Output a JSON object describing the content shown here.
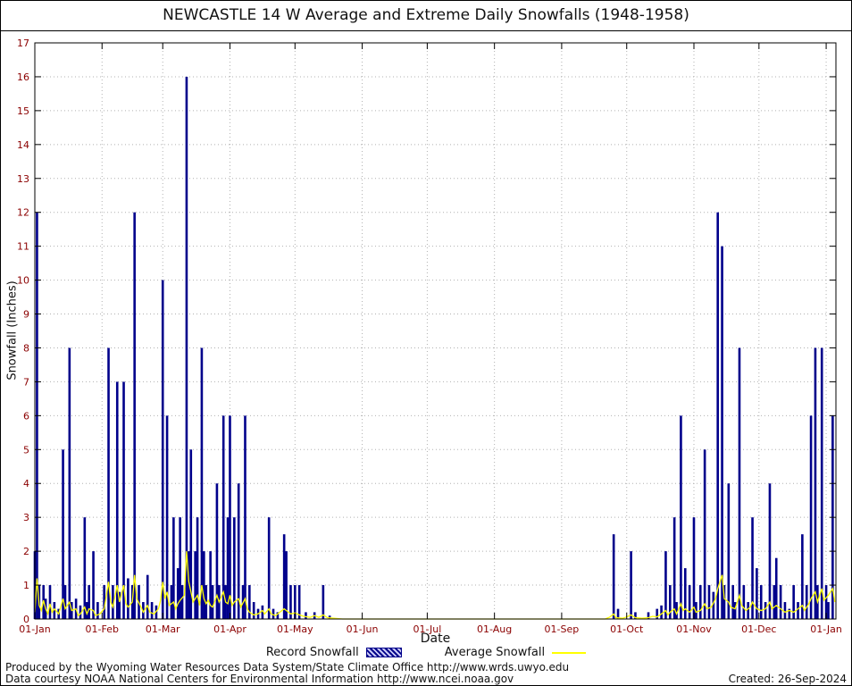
{
  "legend": {
    "record_label": "Record Snowfall",
    "average_label": "Average Snowfall"
  },
  "footer": {
    "line1": "Produced by the Wyoming Water Resources Data System/State Climate Office http://www.wrds.uwyo.edu",
    "line2": "Data courtesy NOAA National Centers for Environmental Information http://www.ncei.noaa.gov",
    "created": "Created: 26-Sep-2024"
  },
  "chart_data": {
    "type": "bar",
    "title": "NEWCASTLE 14 W Average and Extreme Daily Snowfalls (1948-1958)",
    "xlabel": "Date",
    "ylabel": "Snowfall (Inches)",
    "ylim": [
      0,
      17
    ],
    "x_domain_days": [
      1,
      370.5
    ],
    "grid": "dotted",
    "legend_position": "bottom",
    "colors": {
      "record": "#00008b",
      "average": "#ffff00",
      "grid": "#b0b0b0",
      "tick_label": "#8b0000",
      "axis": "#000000"
    },
    "y_ticks": [
      0,
      1,
      2,
      3,
      4,
      5,
      6,
      7,
      8,
      9,
      10,
      11,
      12,
      13,
      14,
      15,
      16,
      17
    ],
    "x_ticks": [
      {
        "day": 1,
        "label": "01-Jan"
      },
      {
        "day": 32,
        "label": "01-Feb"
      },
      {
        "day": 60,
        "label": "01-Mar"
      },
      {
        "day": 91,
        "label": "01-Apr"
      },
      {
        "day": 121,
        "label": "01-May"
      },
      {
        "day": 152,
        "label": "01-Jun"
      },
      {
        "day": 182,
        "label": "01-Jul"
      },
      {
        "day": 213,
        "label": "01-Aug"
      },
      {
        "day": 244,
        "label": "01-Sep"
      },
      {
        "day": 274,
        "label": "01-Oct"
      },
      {
        "day": 305,
        "label": "01-Nov"
      },
      {
        "day": 335,
        "label": "01-Dec"
      },
      {
        "day": 366,
        "label": "01-Jan"
      }
    ],
    "series": [
      {
        "name": "Record Snowfall",
        "type": "bar",
        "color": "#00008b",
        "points": [
          [
            1,
            2
          ],
          [
            2,
            12
          ],
          [
            3,
            1
          ],
          [
            5,
            1
          ],
          [
            6,
            0.6
          ],
          [
            8,
            1
          ],
          [
            10,
            0.5
          ],
          [
            12,
            0.3
          ],
          [
            14,
            5
          ],
          [
            15,
            1
          ],
          [
            17,
            8
          ],
          [
            18,
            0.5
          ],
          [
            20,
            0.6
          ],
          [
            22,
            0.4
          ],
          [
            24,
            3
          ],
          [
            25,
            0.5
          ],
          [
            26,
            1
          ],
          [
            28,
            2
          ],
          [
            30,
            0.5
          ],
          [
            33,
            1
          ],
          [
            35,
            8
          ],
          [
            37,
            1
          ],
          [
            39,
            7
          ],
          [
            40,
            0.8
          ],
          [
            42,
            7
          ],
          [
            44,
            1.2
          ],
          [
            46,
            1
          ],
          [
            47,
            12
          ],
          [
            49,
            1
          ],
          [
            51,
            0.5
          ],
          [
            53,
            1.3
          ],
          [
            55,
            0.5
          ],
          [
            57,
            0.4
          ],
          [
            60,
            10
          ],
          [
            62,
            6
          ],
          [
            64,
            1
          ],
          [
            65,
            3
          ],
          [
            67,
            1.5
          ],
          [
            68,
            3
          ],
          [
            69,
            1
          ],
          [
            71,
            16
          ],
          [
            72,
            2
          ],
          [
            73,
            5
          ],
          [
            75,
            2
          ],
          [
            76,
            3
          ],
          [
            78,
            8
          ],
          [
            79,
            2
          ],
          [
            80,
            1
          ],
          [
            82,
            2
          ],
          [
            83,
            1
          ],
          [
            85,
            4
          ],
          [
            86,
            1
          ],
          [
            88,
            6
          ],
          [
            89,
            1
          ],
          [
            90,
            3
          ],
          [
            91,
            6
          ],
          [
            93,
            3
          ],
          [
            95,
            4
          ],
          [
            97,
            1
          ],
          [
            98,
            6
          ],
          [
            100,
            1
          ],
          [
            102,
            0.5
          ],
          [
            104,
            0.3
          ],
          [
            106,
            0.4
          ],
          [
            109,
            3
          ],
          [
            111,
            0.3
          ],
          [
            113,
            0.2
          ],
          [
            116,
            2.5
          ],
          [
            117,
            2
          ],
          [
            119,
            1
          ],
          [
            121,
            1
          ],
          [
            123,
            1
          ],
          [
            126,
            0.2
          ],
          [
            130,
            0.2
          ],
          [
            134,
            1
          ],
          [
            137,
            0.1
          ],
          [
            268,
            2.5
          ],
          [
            270,
            0.3
          ],
          [
            276,
            2
          ],
          [
            278,
            0.2
          ],
          [
            284,
            0.2
          ],
          [
            288,
            0.3
          ],
          [
            290,
            0.4
          ],
          [
            292,
            2
          ],
          [
            294,
            1
          ],
          [
            296,
            3
          ],
          [
            297,
            0.5
          ],
          [
            299,
            6
          ],
          [
            301,
            1.5
          ],
          [
            303,
            1
          ],
          [
            305,
            3
          ],
          [
            306,
            0.5
          ],
          [
            308,
            1
          ],
          [
            310,
            5
          ],
          [
            312,
            1
          ],
          [
            314,
            0.8
          ],
          [
            316,
            12
          ],
          [
            318,
            11
          ],
          [
            319,
            1
          ],
          [
            321,
            4
          ],
          [
            323,
            1
          ],
          [
            324,
            0.5
          ],
          [
            326,
            8
          ],
          [
            328,
            1
          ],
          [
            330,
            0.5
          ],
          [
            332,
            3
          ],
          [
            334,
            1.5
          ],
          [
            336,
            1
          ],
          [
            338,
            0.5
          ],
          [
            340,
            4
          ],
          [
            342,
            1
          ],
          [
            343,
            1.8
          ],
          [
            345,
            1
          ],
          [
            347,
            0.5
          ],
          [
            349,
            0.3
          ],
          [
            351,
            1
          ],
          [
            353,
            0.5
          ],
          [
            355,
            2.5
          ],
          [
            357,
            1
          ],
          [
            359,
            6
          ],
          [
            361,
            8
          ],
          [
            362,
            1
          ],
          [
            364,
            8
          ],
          [
            366,
            1
          ],
          [
            367,
            0.5
          ],
          [
            369,
            6
          ]
        ]
      },
      {
        "name": "Average Snowfall",
        "type": "line",
        "color": "#ffff00",
        "points": [
          [
            1,
            0.2
          ],
          [
            2,
            1.2
          ],
          [
            3,
            0.4
          ],
          [
            4,
            0.25
          ],
          [
            5,
            0.55
          ],
          [
            6,
            0.3
          ],
          [
            7,
            0.15
          ],
          [
            8,
            0.45
          ],
          [
            9,
            0.2
          ],
          [
            10,
            0.3
          ],
          [
            12,
            0.15
          ],
          [
            14,
            0.6
          ],
          [
            15,
            0.3
          ],
          [
            17,
            0.5
          ],
          [
            18,
            0.25
          ],
          [
            20,
            0.3
          ],
          [
            21,
            0.1
          ],
          [
            22,
            0.15
          ],
          [
            24,
            0.35
          ],
          [
            25,
            0.15
          ],
          [
            26,
            0.3
          ],
          [
            28,
            0.25
          ],
          [
            29,
            0.1
          ],
          [
            31,
            0.15
          ],
          [
            33,
            0.3
          ],
          [
            35,
            1.1
          ],
          [
            36,
            0.5
          ],
          [
            37,
            0.35
          ],
          [
            39,
            1.0
          ],
          [
            40,
            0.5
          ],
          [
            42,
            1.0
          ],
          [
            43,
            0.45
          ],
          [
            44,
            0.35
          ],
          [
            46,
            0.5
          ],
          [
            47,
            1.3
          ],
          [
            48,
            0.6
          ],
          [
            50,
            0.35
          ],
          [
            51,
            0.2
          ],
          [
            53,
            0.4
          ],
          [
            54,
            0.2
          ],
          [
            56,
            0.15
          ],
          [
            58,
            0.3
          ],
          [
            59,
            0.55
          ],
          [
            60,
            1.1
          ],
          [
            61,
            0.6
          ],
          [
            62,
            0.8
          ],
          [
            63,
            0.4
          ],
          [
            65,
            0.5
          ],
          [
            66,
            0.3
          ],
          [
            67,
            0.45
          ],
          [
            68,
            0.55
          ],
          [
            70,
            0.7
          ],
          [
            71,
            2.0
          ],
          [
            72,
            1.1
          ],
          [
            73,
            0.8
          ],
          [
            74,
            0.5
          ],
          [
            75,
            0.6
          ],
          [
            76,
            0.7
          ],
          [
            77,
            0.4
          ],
          [
            78,
            1.0
          ],
          [
            79,
            0.6
          ],
          [
            80,
            0.45
          ],
          [
            81,
            0.55
          ],
          [
            82,
            0.4
          ],
          [
            83,
            0.35
          ],
          [
            85,
            0.7
          ],
          [
            86,
            0.5
          ],
          [
            88,
            0.8
          ],
          [
            89,
            0.5
          ],
          [
            90,
            0.45
          ],
          [
            91,
            0.7
          ],
          [
            92,
            0.4
          ],
          [
            93,
            0.5
          ],
          [
            95,
            0.6
          ],
          [
            96,
            0.35
          ],
          [
            98,
            0.6
          ],
          [
            99,
            0.3
          ],
          [
            100,
            0.2
          ],
          [
            102,
            0.12
          ],
          [
            104,
            0.15
          ],
          [
            106,
            0.25
          ],
          [
            107,
            0.15
          ],
          [
            109,
            0.3
          ],
          [
            110,
            0.15
          ],
          [
            112,
            0.1
          ],
          [
            114,
            0.2
          ],
          [
            116,
            0.3
          ],
          [
            117,
            0.25
          ],
          [
            119,
            0.15
          ],
          [
            121,
            0.18
          ],
          [
            123,
            0.12
          ],
          [
            125,
            0.08
          ],
          [
            128,
            0.05
          ],
          [
            130,
            0.1
          ],
          [
            132,
            0.05
          ],
          [
            134,
            0.12
          ],
          [
            136,
            0.04
          ],
          [
            139,
            0.02
          ],
          [
            143,
            0
          ],
          [
            264,
            0
          ],
          [
            266,
            0.05
          ],
          [
            268,
            0.15
          ],
          [
            269,
            0.04
          ],
          [
            272,
            0.02
          ],
          [
            274,
            0.06
          ],
          [
            276,
            0.12
          ],
          [
            278,
            0.04
          ],
          [
            281,
            0.02
          ],
          [
            284,
            0.04
          ],
          [
            286,
            0.08
          ],
          [
            288,
            0.06
          ],
          [
            290,
            0.15
          ],
          [
            292,
            0.25
          ],
          [
            293,
            0.12
          ],
          [
            294,
            0.2
          ],
          [
            296,
            0.3
          ],
          [
            297,
            0.15
          ],
          [
            299,
            0.45
          ],
          [
            300,
            0.25
          ],
          [
            301,
            0.3
          ],
          [
            303,
            0.2
          ],
          [
            305,
            0.35
          ],
          [
            306,
            0.2
          ],
          [
            308,
            0.25
          ],
          [
            310,
            0.45
          ],
          [
            311,
            0.3
          ],
          [
            313,
            0.35
          ],
          [
            315,
            0.6
          ],
          [
            316,
            0.9
          ],
          [
            318,
            1.3
          ],
          [
            319,
            0.6
          ],
          [
            321,
            0.5
          ],
          [
            322,
            0.35
          ],
          [
            324,
            0.3
          ],
          [
            326,
            0.7
          ],
          [
            327,
            0.4
          ],
          [
            329,
            0.25
          ],
          [
            331,
            0.35
          ],
          [
            332,
            0.5
          ],
          [
            334,
            0.3
          ],
          [
            336,
            0.25
          ],
          [
            338,
            0.3
          ],
          [
            340,
            0.5
          ],
          [
            341,
            0.3
          ],
          [
            343,
            0.4
          ],
          [
            345,
            0.3
          ],
          [
            347,
            0.2
          ],
          [
            349,
            0.25
          ],
          [
            351,
            0.2
          ],
          [
            353,
            0.3
          ],
          [
            355,
            0.4
          ],
          [
            356,
            0.25
          ],
          [
            358,
            0.45
          ],
          [
            359,
            0.6
          ],
          [
            361,
            0.8
          ],
          [
            362,
            0.5
          ],
          [
            364,
            0.9
          ],
          [
            365,
            0.55
          ],
          [
            367,
            0.7
          ],
          [
            369,
            0.9
          ],
          [
            370,
            0.5
          ]
        ]
      }
    ]
  }
}
